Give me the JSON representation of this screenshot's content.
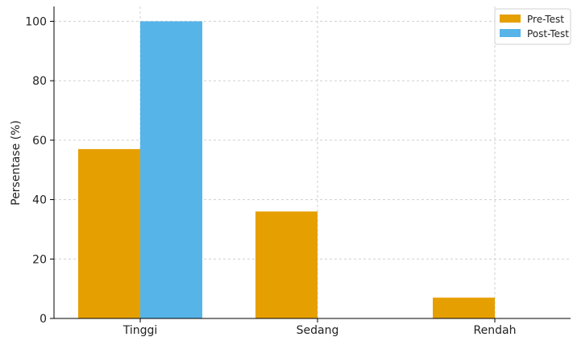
{
  "chart_data": {
    "type": "bar",
    "title": "",
    "xlabel": "",
    "ylabel": "Persentase (%)",
    "categories": [
      "Tinggi",
      "Sedang",
      "Rendah"
    ],
    "series": [
      {
        "name": "Pre-Test",
        "values": [
          57,
          36,
          7
        ],
        "color": "#E69F00"
      },
      {
        "name": "Post-Test",
        "values": [
          100,
          0,
          0
        ],
        "color": "#56B4E9"
      }
    ],
    "ylim": [
      0,
      105
    ],
    "yticks": [
      0,
      20,
      40,
      60,
      80,
      100
    ],
    "grid": true,
    "legend": "top-right"
  }
}
